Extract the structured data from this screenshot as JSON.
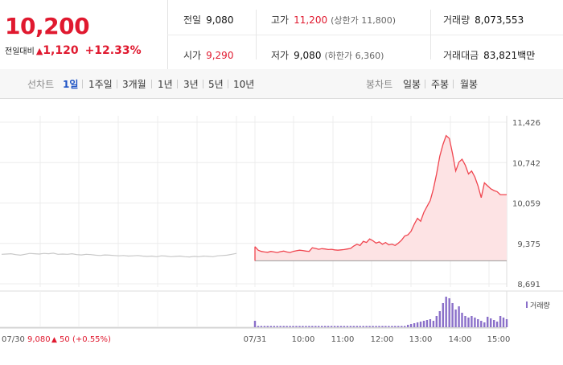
{
  "quote": {
    "price": "10,200",
    "change_label": "전일대비",
    "change_arrow": "▲",
    "change_value": "1,120",
    "change_pct": "+12.33%",
    "prev_close_label": "전일",
    "prev_close": "9,080",
    "open_label": "시가",
    "open": "9,290",
    "high_label": "고가",
    "high": "11,200",
    "upper_limit": "(상한가 11,800)",
    "low_label": "저가",
    "low": "9,080",
    "lower_limit": "(하한가 6,360)",
    "volume_label": "거래량",
    "volume": "8,073,553",
    "value_label": "거래대금",
    "value": "83,821",
    "value_unit": "백만"
  },
  "toolbar": {
    "line_label": "선차트",
    "periods": [
      "1일",
      "1주일",
      "3개월",
      "1년",
      "3년",
      "5년",
      "10년"
    ],
    "active_period": "1일",
    "candle_label": "봉차트",
    "candles": [
      "일봉",
      "주봉",
      "월봉"
    ]
  },
  "chart_data": {
    "type": "line",
    "y_ticks": [
      "11,426",
      "10,742",
      "10,059",
      "9,375",
      "8,691"
    ],
    "ylim": [
      8691,
      11426
    ],
    "x_ticks": [
      "07/31",
      "10:00",
      "11:00",
      "12:00",
      "13:00",
      "14:00",
      "15:00"
    ],
    "prev_day_label": "07/30",
    "prev_day_close": "9,080",
    "prev_day_arrow": "▲",
    "prev_day_change": "50",
    "prev_day_pct": "(+0.55%)",
    "volume_legend": "거래량",
    "prev_day_series": [
      9190,
      9195,
      9200,
      9185,
      9175,
      9190,
      9205,
      9200,
      9195,
      9205,
      9200,
      9210,
      9190,
      9195,
      9190,
      9200,
      9185,
      9180,
      9190,
      9185,
      9175,
      9170,
      9180,
      9175,
      9170,
      9165,
      9170,
      9160,
      9165,
      9170,
      9160,
      9155,
      9160,
      9150,
      9165,
      9160,
      9150,
      9155,
      9160,
      9150,
      9145,
      9155,
      9150,
      9160,
      9155,
      9150,
      9165,
      9170,
      9175,
      9190,
      9205
    ],
    "today_series": [
      9320,
      9260,
      9240,
      9230,
      9225,
      9240,
      9230,
      9220,
      9235,
      9245,
      9230,
      9220,
      9240,
      9250,
      9260,
      9255,
      9245,
      9240,
      9300,
      9290,
      9275,
      9285,
      9280,
      9270,
      9275,
      9265,
      9260,
      9265,
      9270,
      9280,
      9290,
      9330,
      9360,
      9340,
      9410,
      9390,
      9450,
      9420,
      9380,
      9400,
      9360,
      9390,
      9350,
      9360,
      9340,
      9380,
      9430,
      9500,
      9520,
      9580,
      9700,
      9800,
      9750,
      9900,
      10000,
      10100,
      10300,
      10550,
      10850,
      11050,
      11200,
      11150,
      10900,
      10600,
      10750,
      10800,
      10700,
      10550,
      10600,
      10500,
      10350,
      10150,
      10400,
      10350,
      10300,
      10270,
      10250,
      10200,
      10200,
      10200
    ],
    "prev_close_value": 9080
  }
}
